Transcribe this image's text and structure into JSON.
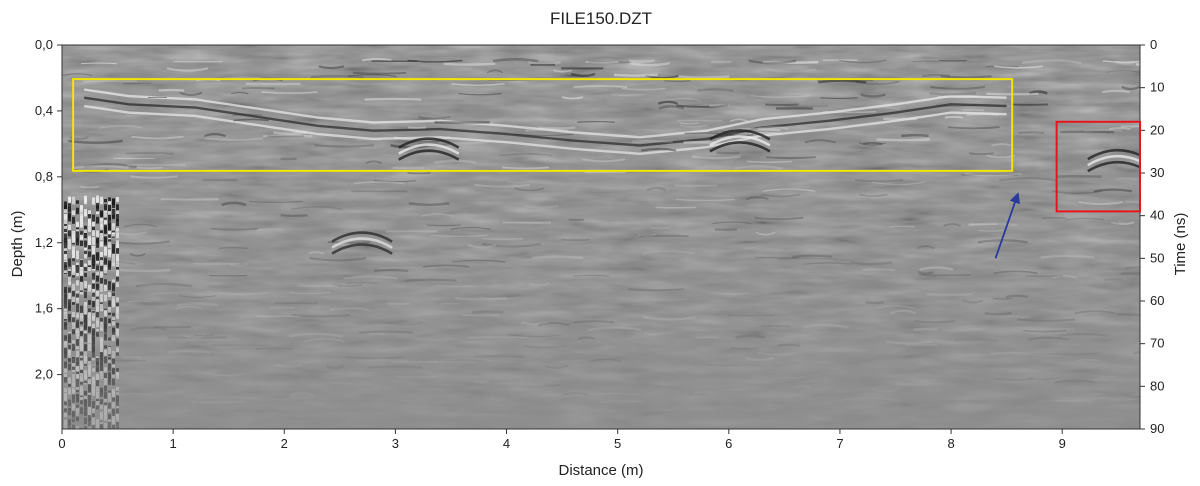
{
  "chart_data": {
    "type": "heatmap",
    "title": "FILE150.DZT",
    "xlabel": "Distance (m)",
    "ylabel_left": "Depth (m)",
    "ylabel_right": "Time (ns)",
    "x_ticks": [
      "0",
      "1",
      "2",
      "3",
      "4",
      "5",
      "6",
      "7",
      "8",
      "9"
    ],
    "x_tick_values": [
      0,
      1,
      2,
      3,
      4,
      5,
      6,
      7,
      8,
      9
    ],
    "xlim": [
      0,
      9.7
    ],
    "left_ticks": [
      "0,0",
      "0,4",
      "0,8",
      "1,2",
      "1,6",
      "2,0"
    ],
    "left_tick_values": [
      0,
      0.4,
      0.8,
      1.2,
      1.6,
      2.0
    ],
    "ylim_depth": [
      0,
      2.33
    ],
    "right_ticks": [
      "0",
      "10",
      "20",
      "30",
      "40",
      "50",
      "60",
      "70",
      "80",
      "90"
    ],
    "right_tick_values": [
      0,
      10,
      20,
      30,
      40,
      50,
      60,
      70,
      80,
      90
    ],
    "ylim_time": [
      0,
      90
    ],
    "colormap": "grayscale",
    "annotations": [
      {
        "type": "rectangle",
        "color": "#f2e600",
        "x": [
          0.1,
          8.55
        ],
        "time": [
          8,
          29.5
        ]
      },
      {
        "type": "rectangle",
        "color": "#e8141e",
        "x": [
          8.95,
          9.7
        ],
        "time": [
          18,
          39
        ]
      },
      {
        "type": "arrow",
        "color": "#2a3a9c",
        "from": {
          "x": 8.4,
          "time": 50
        },
        "to": {
          "x": 8.6,
          "time": 35
        }
      }
    ]
  }
}
